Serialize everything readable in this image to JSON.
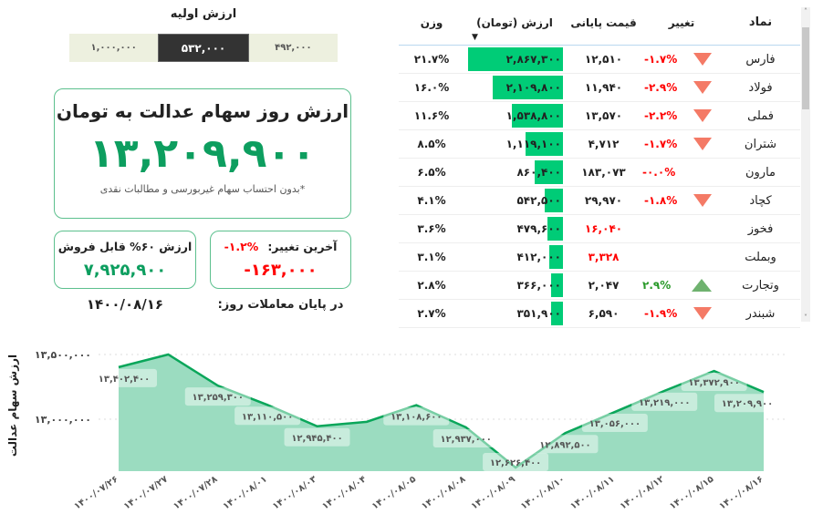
{
  "initial_value": {
    "title": "ارزش اولیه",
    "options": [
      "۴۹۲,۰۰۰",
      "۵۳۲,۰۰۰",
      "۱,۰۰۰,۰۰۰"
    ],
    "selected": 1
  },
  "main": {
    "title": "ارزش روز سهام عدالت به تومان",
    "value": "۱۳,۲۰۹,۹۰۰",
    "note": "*بدون احتساب سهام غیربورسی و مطالبات نقدی"
  },
  "sellable": {
    "title": "ارزش ۶۰% قابل فروش",
    "value": "۷,۹۲۵,۹۰۰"
  },
  "last_change": {
    "title": "آخرین تغییر:",
    "percent": "-۱.۲%",
    "value": "-۱۶۳,۰۰۰"
  },
  "date": {
    "label": "در پایان معاملات روز:",
    "value": "۱۴۰۰/۰۸/۱۶"
  },
  "colors": {
    "green": "#0d9e5f",
    "red": "#ff0000",
    "bar": "#00cc77",
    "area": "#9bdcc0"
  },
  "table": {
    "headers": {
      "symbol": "نماد",
      "change": "تغییر",
      "price": "قیمت پایانی",
      "value": "ارزش (تومان)",
      "weight": "وزن"
    },
    "sort_icon": "sort-desc-icon",
    "rows": [
      {
        "symbol": "فارس",
        "change": "-۱.۷%",
        "dir": "down",
        "price": "۱۲,۵۱۰",
        "price_red": false,
        "value": "۲,۸۶۷,۳۰۰",
        "amount": 2867300,
        "weight": "۲۱.۷%"
      },
      {
        "symbol": "فولاد",
        "change": "-۲.۹%",
        "dir": "down",
        "price": "۱۱,۹۴۰",
        "price_red": false,
        "value": "۲,۱۰۹,۸۰۰",
        "amount": 2109800,
        "weight": "۱۶.۰%"
      },
      {
        "symbol": "فملی",
        "change": "-۲.۲%",
        "dir": "down",
        "price": "۱۳,۵۷۰",
        "price_red": false,
        "value": "۱,۵۳۸,۸۰۰",
        "amount": 1538800,
        "weight": "۱۱.۶%"
      },
      {
        "symbol": "شتران",
        "change": "-۱.۷%",
        "dir": "down",
        "price": "۴,۷۱۲",
        "price_red": false,
        "value": "۱,۱۱۹,۱۰۰",
        "amount": 1119100,
        "weight": "۸.۵%"
      },
      {
        "symbol": "مارون",
        "change": "-۰.۰%",
        "dir": "none",
        "price": "۱۸۳,۰۷۳",
        "price_red": false,
        "value": "۸۶۰,۴۰۰",
        "amount": 860400,
        "weight": "۶.۵%"
      },
      {
        "symbol": "کچاد",
        "change": "-۱.۸%",
        "dir": "down",
        "price": "۲۹,۹۷۰",
        "price_red": false,
        "value": "۵۴۲,۵۰۰",
        "amount": 542500,
        "weight": "۴.۱%"
      },
      {
        "symbol": "فخوز",
        "change": "",
        "dir": "none",
        "price": "۱۶,۰۴۰",
        "price_red": true,
        "value": "۴۷۹,۶۰۰",
        "amount": 479600,
        "weight": "۳.۶%"
      },
      {
        "symbol": "وبملت",
        "change": "",
        "dir": "none",
        "price": "۳,۳۲۸",
        "price_red": true,
        "value": "۴۱۲,۰۰۰",
        "amount": 412000,
        "weight": "۳.۱%"
      },
      {
        "symbol": "وتجارت",
        "change": "۲.۹%",
        "dir": "up",
        "price": "۲,۰۴۷",
        "price_red": false,
        "value": "۳۶۶,۰۰۰",
        "amount": 366000,
        "weight": "۲.۸%"
      },
      {
        "symbol": "شبندر",
        "change": "-۱.۹%",
        "dir": "down",
        "price": "۶,۵۹۰",
        "price_red": false,
        "value": "۳۵۱,۹۰۰",
        "amount": 351900,
        "weight": "۲.۷%"
      }
    ]
  },
  "chart_data": {
    "type": "area",
    "ylabel": "ارزش سهام عدالت",
    "ylim": [
      12626400,
      13500000
    ],
    "yticks": [
      {
        "value": 13000000,
        "label": "۱۳,۰۰۰,۰۰۰"
      },
      {
        "value": 13500000,
        "label": "۱۳,۵۰۰,۰۰۰"
      }
    ],
    "grid": true,
    "x": [
      "۱۴۰۰/۰۷/۲۶",
      "۱۴۰۰/۰۷/۲۷",
      "۱۴۰۰/۰۷/۲۸",
      "۱۴۰۰/۰۸/۰۱",
      "۱۴۰۰/۰۸/۰۳",
      "۱۴۰۰/۰۸/۰۴",
      "۱۴۰۰/۰۸/۰۵",
      "۱۴۰۰/۰۸/۰۸",
      "۱۴۰۰/۰۸/۰۹",
      "۱۴۰۰/۰۸/۱۰",
      "۱۴۰۰/۰۸/۱۱",
      "۱۴۰۰/۰۸/۱۲",
      "۱۴۰۰/۰۸/۱۵",
      "۱۴۰۰/۰۸/۱۶"
    ],
    "values": [
      13402400,
      13500000,
      13259300,
      13110500,
      12945400,
      12980000,
      13108600,
      12937000,
      12626400,
      12892500,
      13056000,
      13219000,
      13372900,
      13209900
    ],
    "labels": [
      "۱۳,۴۰۲,۴۰۰",
      "",
      "۱۳,۲۵۹,۳۰۰",
      "۱۳,۱۱۰,۵۰۰",
      "۱۲,۹۴۵,۴۰۰",
      "",
      "۱۳,۱۰۸,۶۰۰",
      "۱۲,۹۳۷,۰۰۰",
      "۱۲,۶۲۶,۴۰۰",
      "۱۲,۸۹۲,۵۰۰",
      "۱۳,۰۵۶,۰۰۰",
      "۱۳,۲۱۹,۰۰۰",
      "۱۳,۳۷۲,۹۰۰",
      "۱۳,۲۰۹,۹۰۰"
    ]
  }
}
